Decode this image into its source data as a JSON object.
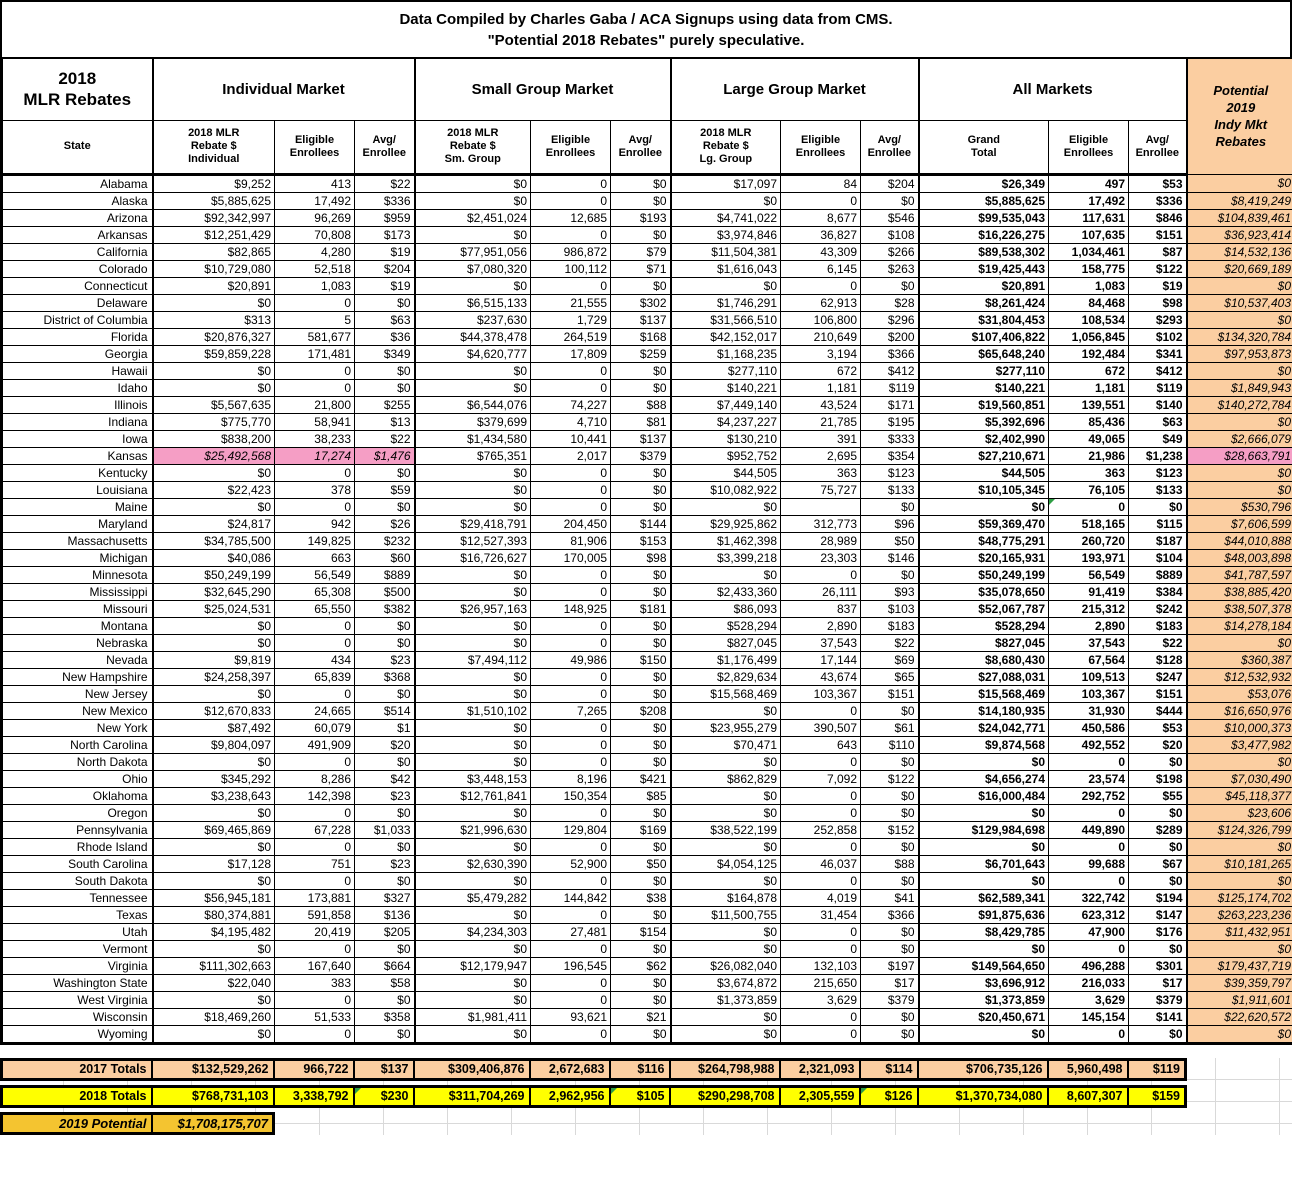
{
  "title": {
    "line1": "Data Compiled by Charles Gaba / ACA Signups using data from CMS.",
    "line2": "\"Potential 2018 Rebates\" purely speculative."
  },
  "colors": {
    "peach": "#FBCEA1",
    "pink_highlight": "#F59EC5",
    "totals_2018_yellow": "#FFFF00",
    "potential_2019_gold": "#F4C430",
    "comment_marker_green": "#2E9E44",
    "border": "#000000"
  },
  "chart_data": {
    "type": "table",
    "corner_label": "2018\nMLR Rebates",
    "state_header": "State",
    "groups": [
      {
        "label": "Individual Market"
      },
      {
        "label": "Small Group Market"
      },
      {
        "label": "Large Group Market"
      },
      {
        "label": "All Markets"
      }
    ],
    "potential_header": "Potential\n2019\nIndy Mkt\nRebates",
    "subheaders": [
      "2018 MLR\nRebate $\nIndividual",
      "Eligible\nEnrollees",
      "Avg/\nEnrollee",
      "2018 MLR\nRebate $\nSm. Group",
      "Eligible\nEnrollees",
      "Avg/\nEnrollee",
      "2018 MLR\nRebate $\nLg. Group",
      "Eligible\nEnrollees",
      "Avg/\nEnrollee",
      "Grand\nTotal",
      "Eligible\nEnrollees",
      "Avg/\nEnrollee"
    ],
    "rows": [
      {
        "state": "Alabama",
        "values": [
          "$9,252",
          "413",
          "$22",
          "$0",
          "0",
          "$0",
          "$17,097",
          "84",
          "$204",
          "$26,349",
          "497",
          "$53",
          "$0"
        ]
      },
      {
        "state": "Alaska",
        "values": [
          "$5,885,625",
          "17,492",
          "$336",
          "$0",
          "0",
          "$0",
          "$0",
          "0",
          "$0",
          "$5,885,625",
          "17,492",
          "$336",
          "$8,419,249"
        ]
      },
      {
        "state": "Arizona",
        "values": [
          "$92,342,997",
          "96,269",
          "$959",
          "$2,451,024",
          "12,685",
          "$193",
          "$4,741,022",
          "8,677",
          "$546",
          "$99,535,043",
          "117,631",
          "$846",
          "$104,839,461"
        ]
      },
      {
        "state": "Arkansas",
        "values": [
          "$12,251,429",
          "70,808",
          "$173",
          "$0",
          "0",
          "$0",
          "$3,974,846",
          "36,827",
          "$108",
          "$16,226,275",
          "107,635",
          "$151",
          "$36,923,414"
        ]
      },
      {
        "state": "California",
        "values": [
          "$82,865",
          "4,280",
          "$19",
          "$77,951,056",
          "986,872",
          "$79",
          "$11,504,381",
          "43,309",
          "$266",
          "$89,538,302",
          "1,034,461",
          "$87",
          "$14,532,136"
        ]
      },
      {
        "state": "Colorado",
        "values": [
          "$10,729,080",
          "52,518",
          "$204",
          "$7,080,320",
          "100,112",
          "$71",
          "$1,616,043",
          "6,145",
          "$263",
          "$19,425,443",
          "158,775",
          "$122",
          "$20,669,189"
        ]
      },
      {
        "state": "Connecticut",
        "values": [
          "$20,891",
          "1,083",
          "$19",
          "$0",
          "0",
          "$0",
          "$0",
          "0",
          "$0",
          "$20,891",
          "1,083",
          "$19",
          "$0"
        ]
      },
      {
        "state": "Delaware",
        "values": [
          "$0",
          "0",
          "$0",
          "$6,515,133",
          "21,555",
          "$302",
          "$1,746,291",
          "62,913",
          "$28",
          "$8,261,424",
          "84,468",
          "$98",
          "$10,537,403"
        ]
      },
      {
        "state": "District of Columbia",
        "values": [
          "$313",
          "5",
          "$63",
          "$237,630",
          "1,729",
          "$137",
          "$31,566,510",
          "106,800",
          "$296",
          "$31,804,453",
          "108,534",
          "$293",
          "$0"
        ]
      },
      {
        "state": "Florida",
        "values": [
          "$20,876,327",
          "581,677",
          "$36",
          "$44,378,478",
          "264,519",
          "$168",
          "$42,152,017",
          "210,649",
          "$200",
          "$107,406,822",
          "1,056,845",
          "$102",
          "$134,320,784"
        ]
      },
      {
        "state": "Georgia",
        "values": [
          "$59,859,228",
          "171,481",
          "$349",
          "$4,620,777",
          "17,809",
          "$259",
          "$1,168,235",
          "3,194",
          "$366",
          "$65,648,240",
          "192,484",
          "$341",
          "$97,953,873"
        ]
      },
      {
        "state": "Hawaii",
        "values": [
          "$0",
          "0",
          "$0",
          "$0",
          "0",
          "$0",
          "$277,110",
          "672",
          "$412",
          "$277,110",
          "672",
          "$412",
          "$0"
        ]
      },
      {
        "state": "Idaho",
        "values": [
          "$0",
          "0",
          "$0",
          "$0",
          "0",
          "$0",
          "$140,221",
          "1,181",
          "$119",
          "$140,221",
          "1,181",
          "$119",
          "$1,849,943"
        ]
      },
      {
        "state": "Illinois",
        "values": [
          "$5,567,635",
          "21,800",
          "$255",
          "$6,544,076",
          "74,227",
          "$88",
          "$7,449,140",
          "43,524",
          "$171",
          "$19,560,851",
          "139,551",
          "$140",
          "$140,272,784"
        ]
      },
      {
        "state": "Indiana",
        "values": [
          "$775,770",
          "58,941",
          "$13",
          "$379,699",
          "4,710",
          "$81",
          "$4,237,227",
          "21,785",
          "$195",
          "$5,392,696",
          "85,436",
          "$63",
          "$0"
        ]
      },
      {
        "state": "Iowa",
        "values": [
          "$838,200",
          "38,233",
          "$22",
          "$1,434,580",
          "10,441",
          "$137",
          "$130,210",
          "391",
          "$333",
          "$2,402,990",
          "49,065",
          "$49",
          "$2,666,079"
        ]
      },
      {
        "state": "Kansas",
        "highlight": true,
        "values": [
          "$25,492,568",
          "17,274",
          "$1,476",
          "$765,351",
          "2,017",
          "$379",
          "$952,752",
          "2,695",
          "$354",
          "$27,210,671",
          "21,986",
          "$1,238",
          "$28,663,791"
        ]
      },
      {
        "state": "Kentucky",
        "values": [
          "$0",
          "0",
          "$0",
          "$0",
          "0",
          "$0",
          "$44,505",
          "363",
          "$123",
          "$44,505",
          "363",
          "$123",
          "$0"
        ]
      },
      {
        "state": "Louisiana",
        "values": [
          "$22,423",
          "378",
          "$59",
          "$0",
          "0",
          "$0",
          "$10,082,922",
          "75,727",
          "$133",
          "$10,105,345",
          "76,105",
          "$133",
          "$0"
        ]
      },
      {
        "state": "Maine",
        "marker": 10,
        "values": [
          "$0",
          "0",
          "$0",
          "$0",
          "0",
          "$0",
          "$0",
          "",
          "$0",
          "$0",
          "0",
          "$0",
          "$530,796"
        ]
      },
      {
        "state": "Maryland",
        "values": [
          "$24,817",
          "942",
          "$26",
          "$29,418,791",
          "204,450",
          "$144",
          "$29,925,862",
          "312,773",
          "$96",
          "$59,369,470",
          "518,165",
          "$115",
          "$7,606,599"
        ]
      },
      {
        "state": "Massachusetts",
        "values": [
          "$34,785,500",
          "149,825",
          "$232",
          "$12,527,393",
          "81,906",
          "$153",
          "$1,462,398",
          "28,989",
          "$50",
          "$48,775,291",
          "260,720",
          "$187",
          "$44,010,888"
        ]
      },
      {
        "state": "Michigan",
        "values": [
          "$40,086",
          "663",
          "$60",
          "$16,726,627",
          "170,005",
          "$98",
          "$3,399,218",
          "23,303",
          "$146",
          "$20,165,931",
          "193,971",
          "$104",
          "$48,003,898"
        ]
      },
      {
        "state": "Minnesota",
        "values": [
          "$50,249,199",
          "56,549",
          "$889",
          "$0",
          "0",
          "$0",
          "$0",
          "0",
          "$0",
          "$50,249,199",
          "56,549",
          "$889",
          "$41,787,597"
        ]
      },
      {
        "state": "Mississippi",
        "values": [
          "$32,645,290",
          "65,308",
          "$500",
          "$0",
          "0",
          "$0",
          "$2,433,360",
          "26,111",
          "$93",
          "$35,078,650",
          "91,419",
          "$384",
          "$38,885,420"
        ]
      },
      {
        "state": "Missouri",
        "values": [
          "$25,024,531",
          "65,550",
          "$382",
          "$26,957,163",
          "148,925",
          "$181",
          "$86,093",
          "837",
          "$103",
          "$52,067,787",
          "215,312",
          "$242",
          "$38,507,378"
        ]
      },
      {
        "state": "Montana",
        "values": [
          "$0",
          "0",
          "$0",
          "$0",
          "0",
          "$0",
          "$528,294",
          "2,890",
          "$183",
          "$528,294",
          "2,890",
          "$183",
          "$14,278,184"
        ]
      },
      {
        "state": "Nebraska",
        "values": [
          "$0",
          "0",
          "$0",
          "$0",
          "0",
          "$0",
          "$827,045",
          "37,543",
          "$22",
          "$827,045",
          "37,543",
          "$22",
          "$0"
        ]
      },
      {
        "state": "Nevada",
        "values": [
          "$9,819",
          "434",
          "$23",
          "$7,494,112",
          "49,986",
          "$150",
          "$1,176,499",
          "17,144",
          "$69",
          "$8,680,430",
          "67,564",
          "$128",
          "$360,387"
        ]
      },
      {
        "state": "New Hampshire",
        "values": [
          "$24,258,397",
          "65,839",
          "$368",
          "$0",
          "0",
          "$0",
          "$2,829,634",
          "43,674",
          "$65",
          "$27,088,031",
          "109,513",
          "$247",
          "$12,532,932"
        ]
      },
      {
        "state": "New Jersey",
        "values": [
          "$0",
          "0",
          "$0",
          "$0",
          "0",
          "$0",
          "$15,568,469",
          "103,367",
          "$151",
          "$15,568,469",
          "103,367",
          "$151",
          "$53,076"
        ]
      },
      {
        "state": "New Mexico",
        "values": [
          "$12,670,833",
          "24,665",
          "$514",
          "$1,510,102",
          "7,265",
          "$208",
          "$0",
          "0",
          "$0",
          "$14,180,935",
          "31,930",
          "$444",
          "$16,650,976"
        ]
      },
      {
        "state": "New York",
        "values": [
          "$87,492",
          "60,079",
          "$1",
          "$0",
          "0",
          "$0",
          "$23,955,279",
          "390,507",
          "$61",
          "$24,042,771",
          "450,586",
          "$53",
          "$10,000,373"
        ]
      },
      {
        "state": "North Carolina",
        "values": [
          "$9,804,097",
          "491,909",
          "$20",
          "$0",
          "0",
          "$0",
          "$70,471",
          "643",
          "$110",
          "$9,874,568",
          "492,552",
          "$20",
          "$3,477,982"
        ]
      },
      {
        "state": "North Dakota",
        "values": [
          "$0",
          "0",
          "$0",
          "$0",
          "0",
          "$0",
          "$0",
          "0",
          "$0",
          "$0",
          "0",
          "$0",
          "$0"
        ]
      },
      {
        "state": "Ohio",
        "values": [
          "$345,292",
          "8,286",
          "$42",
          "$3,448,153",
          "8,196",
          "$421",
          "$862,829",
          "7,092",
          "$122",
          "$4,656,274",
          "23,574",
          "$198",
          "$7,030,490"
        ]
      },
      {
        "state": "Oklahoma",
        "values": [
          "$3,238,643",
          "142,398",
          "$23",
          "$12,761,841",
          "150,354",
          "$85",
          "$0",
          "0",
          "$0",
          "$16,000,484",
          "292,752",
          "$55",
          "$45,118,377"
        ]
      },
      {
        "state": "Oregon",
        "values": [
          "$0",
          "0",
          "$0",
          "$0",
          "0",
          "$0",
          "$0",
          "0",
          "$0",
          "$0",
          "0",
          "$0",
          "$23,606"
        ]
      },
      {
        "state": "Pennsylvania",
        "values": [
          "$69,465,869",
          "67,228",
          "$1,033",
          "$21,996,630",
          "129,804",
          "$169",
          "$38,522,199",
          "252,858",
          "$152",
          "$129,984,698",
          "449,890",
          "$289",
          "$124,326,799"
        ]
      },
      {
        "state": "Rhode Island",
        "values": [
          "$0",
          "0",
          "$0",
          "$0",
          "0",
          "$0",
          "$0",
          "0",
          "$0",
          "$0",
          "0",
          "$0",
          "$0"
        ]
      },
      {
        "state": "South Carolina",
        "values": [
          "$17,128",
          "751",
          "$23",
          "$2,630,390",
          "52,900",
          "$50",
          "$4,054,125",
          "46,037",
          "$88",
          "$6,701,643",
          "99,688",
          "$67",
          "$10,181,265"
        ]
      },
      {
        "state": "South Dakota",
        "values": [
          "$0",
          "0",
          "$0",
          "$0",
          "0",
          "$0",
          "$0",
          "0",
          "$0",
          "$0",
          "0",
          "$0",
          "$0"
        ]
      },
      {
        "state": "Tennessee",
        "values": [
          "$56,945,181",
          "173,881",
          "$327",
          "$5,479,282",
          "144,842",
          "$38",
          "$164,878",
          "4,019",
          "$41",
          "$62,589,341",
          "322,742",
          "$194",
          "$125,174,702"
        ]
      },
      {
        "state": "Texas",
        "values": [
          "$80,374,881",
          "591,858",
          "$136",
          "$0",
          "0",
          "$0",
          "$11,500,755",
          "31,454",
          "$366",
          "$91,875,636",
          "623,312",
          "$147",
          "$263,223,236"
        ]
      },
      {
        "state": "Utah",
        "values": [
          "$4,195,482",
          "20,419",
          "$205",
          "$4,234,303",
          "27,481",
          "$154",
          "$0",
          "0",
          "$0",
          "$8,429,785",
          "47,900",
          "$176",
          "$11,432,951"
        ]
      },
      {
        "state": "Vermont",
        "values": [
          "$0",
          "0",
          "$0",
          "$0",
          "0",
          "$0",
          "$0",
          "0",
          "$0",
          "$0",
          "0",
          "$0",
          "$0"
        ]
      },
      {
        "state": "Virginia",
        "values": [
          "$111,302,663",
          "167,640",
          "$664",
          "$12,179,947",
          "196,545",
          "$62",
          "$26,082,040",
          "132,103",
          "$197",
          "$149,564,650",
          "496,288",
          "$301",
          "$179,437,719"
        ]
      },
      {
        "state": "Washington State",
        "values": [
          "$22,040",
          "383",
          "$58",
          "$0",
          "0",
          "$0",
          "$3,674,872",
          "215,650",
          "$17",
          "$3,696,912",
          "216,033",
          "$17",
          "$39,359,797"
        ]
      },
      {
        "state": "West Virginia",
        "values": [
          "$0",
          "0",
          "$0",
          "$0",
          "0",
          "$0",
          "$1,373,859",
          "3,629",
          "$379",
          "$1,373,859",
          "3,629",
          "$379",
          "$1,911,601"
        ]
      },
      {
        "state": "Wisconsin",
        "values": [
          "$18,469,260",
          "51,533",
          "$358",
          "$1,981,411",
          "93,621",
          "$21",
          "$0",
          "0",
          "$0",
          "$20,450,671",
          "145,154",
          "$141",
          "$22,620,572"
        ]
      },
      {
        "state": "Wyoming",
        "values": [
          "$0",
          "0",
          "$0",
          "$0",
          "0",
          "$0",
          "$0",
          "0",
          "$0",
          "$0",
          "0",
          "$0",
          "$0"
        ]
      }
    ],
    "totals_2017": {
      "label": "2017 Totals",
      "values": [
        "$132,529,262",
        "966,722",
        "$137",
        "$309,406,876",
        "2,672,683",
        "$116",
        "$264,798,988",
        "2,321,093",
        "$114",
        "$706,735,126",
        "5,960,498",
        "$119"
      ]
    },
    "totals_2018": {
      "label": "2018 Totals",
      "markers": [
        2,
        5,
        8
      ],
      "values": [
        "$768,731,103",
        "3,338,792",
        "$230",
        "$311,704,269",
        "2,962,956",
        "$105",
        "$290,298,708",
        "2,305,559",
        "$126",
        "$1,370,734,080",
        "8,607,307",
        "$159"
      ]
    },
    "potential_2019": {
      "label": "2019 Potential",
      "value": "$1,708,175,707"
    }
  }
}
